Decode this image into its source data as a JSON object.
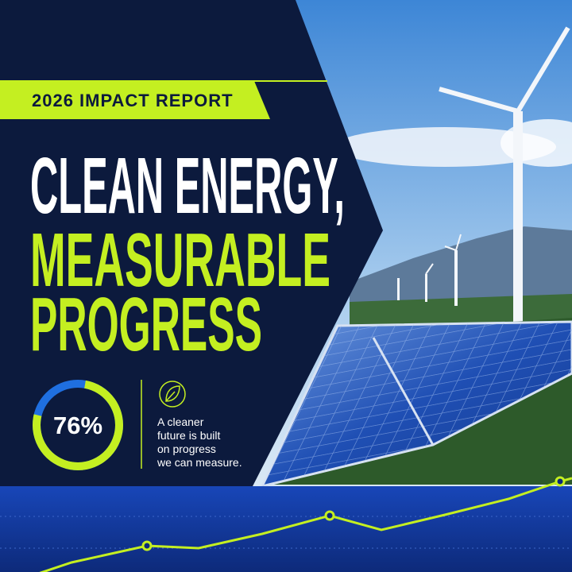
{
  "badge": "2026 IMPACT REPORT",
  "headline": {
    "lines": [
      "CLEAN ENERGY,",
      "MEASURABLE",
      "PROGRESS"
    ]
  },
  "stat": {
    "value": 76,
    "label": "76%"
  },
  "tagline": {
    "lines": [
      "A cleaner",
      "future is built",
      "on progress",
      "we can measure."
    ]
  }
}
